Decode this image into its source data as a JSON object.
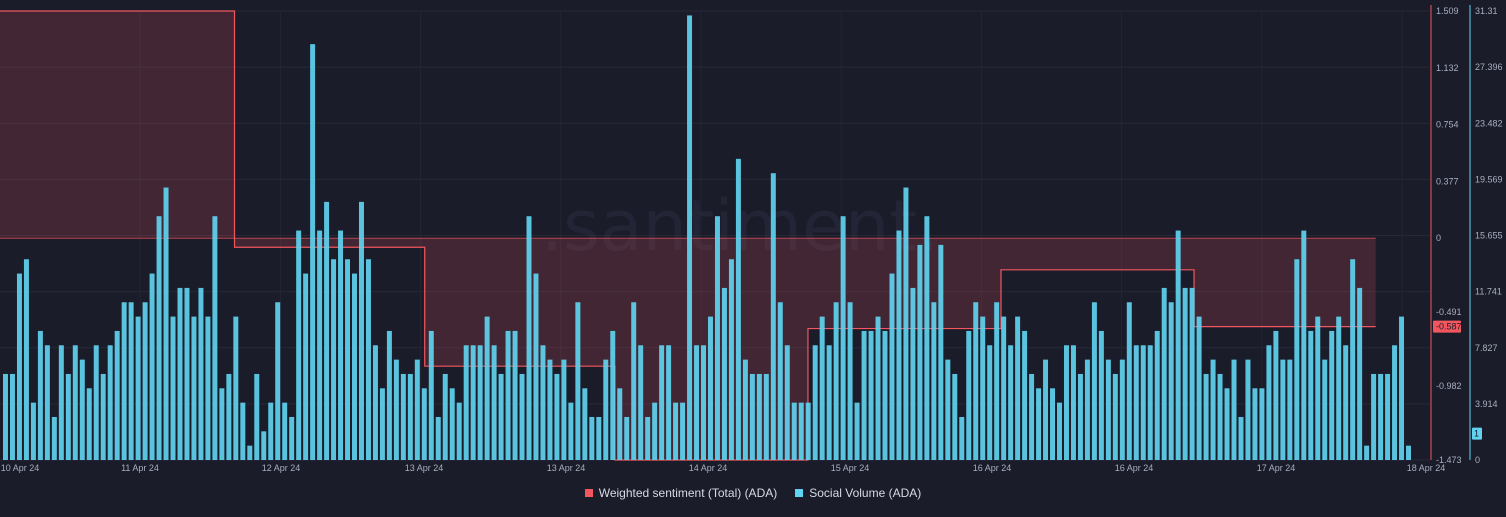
{
  "chart_data": {
    "type": "bar",
    "watermark": ".santiment.",
    "x_tick_labels": [
      "10 Apr 24",
      "11 Apr 24",
      "12 Apr 24",
      "13 Apr 24",
      "13 Apr 24",
      "14 Apr 24",
      "15 Apr 24",
      "16 Apr 24",
      "16 Apr 24",
      "17 Apr 24",
      "18 Apr 24"
    ],
    "left_axis": {
      "label": "Weighted sentiment (Total) (ADA)",
      "ylim": [
        -1.473,
        1.509
      ],
      "ticks": [
        "1.509",
        "1.132",
        "0.754",
        "0.377",
        "0",
        "-0.491",
        "-0.982",
        "-1.473"
      ],
      "current_value_label": "-0.587",
      "color": "#f2565f"
    },
    "right_axis": {
      "label": "Social Volume (ADA)",
      "ylim": [
        0,
        31.31
      ],
      "ticks": [
        "31.31",
        "27.396",
        "23.482",
        "19.569",
        "15.655",
        "11.741",
        "7.827",
        "3.914",
        "0"
      ],
      "current_value_label": "1",
      "color": "#5fd3ef"
    },
    "series": [
      {
        "name": "Social Volume (ADA)",
        "chart_type": "bar",
        "color": "#5fd3ef",
        "values": [
          6,
          6,
          13,
          14,
          4,
          9,
          8,
          3,
          8,
          6,
          8,
          7,
          5,
          8,
          6,
          8,
          9,
          11,
          11,
          10,
          11,
          13,
          17,
          19,
          10,
          12,
          12,
          10,
          12,
          10,
          17,
          5,
          6,
          10,
          4,
          1,
          6,
          2,
          4,
          11,
          4,
          3,
          16,
          13,
          29,
          16,
          18,
          14,
          16,
          14,
          13,
          18,
          14,
          8,
          5,
          9,
          7,
          6,
          6,
          7,
          5,
          9,
          3,
          6,
          5,
          4,
          8,
          8,
          8,
          10,
          8,
          6,
          9,
          9,
          6,
          17,
          13,
          8,
          7,
          6,
          7,
          4,
          11,
          5,
          3,
          3,
          7,
          9,
          5,
          3,
          11,
          8,
          3,
          4,
          8,
          8,
          4,
          4,
          31,
          8,
          8,
          10,
          17,
          12,
          14,
          21,
          7,
          6,
          6,
          6,
          20,
          11,
          8,
          4,
          4,
          4,
          8,
          10,
          8,
          11,
          17,
          11,
          4,
          9,
          9,
          10,
          9,
          13,
          16,
          19,
          12,
          15,
          17,
          11,
          15,
          7,
          6,
          3,
          9,
          11,
          10,
          8,
          11,
          10,
          8,
          10,
          9,
          6,
          5,
          7,
          5,
          4,
          8,
          8,
          6,
          7,
          11,
          9,
          7,
          6,
          7,
          11,
          8,
          8,
          8,
          9,
          12,
          11,
          16,
          12,
          12,
          10,
          6,
          7,
          6,
          5,
          7,
          3,
          7,
          5,
          5,
          8,
          9,
          7,
          7,
          14,
          16,
          9,
          10,
          7,
          9,
          10,
          8,
          14,
          12,
          1,
          6,
          6,
          6,
          8,
          10,
          1
        ]
      },
      {
        "name": "Weighted sentiment (Total) (ADA)",
        "chart_type": "step-area",
        "color": "#f2565f",
        "values": [
          1.509,
          1.509,
          -0.1,
          -0.1,
          -0.1,
          -0.87,
          -0.87,
          -0.87,
          -0.87,
          -0.87,
          -1.473,
          -1.473,
          -1.473,
          -1.473,
          -1.473,
          -1.473,
          -0.587,
          -0.587,
          -0.587,
          -0.587,
          -0.587,
          -0.21,
          -0.21,
          -0.21,
          -0.21,
          -0.21,
          -0.587,
          -0.587,
          -0.587,
          -0.587,
          -0.587,
          -0.587
        ],
        "step_x_fractions": [
          0.0,
          0.165,
          0.171,
          0.29,
          0.297,
          0.304,
          0.43,
          0.436,
          0.44,
          0.56,
          0.566,
          0.57,
          0.571,
          0.574,
          0.57,
          0.57,
          0.571,
          0.572,
          0.572,
          0.573,
          0.704,
          0.709,
          0.71,
          0.84,
          0.842,
          0.844,
          0.845,
          0.845,
          0.846,
          0.9,
          0.95,
          0.967
        ]
      }
    ]
  },
  "legend": {
    "items": [
      {
        "label": "Weighted sentiment (Total) (ADA)",
        "color": "#f2565f"
      },
      {
        "label": "Social Volume (ADA)",
        "color": "#5fd3ef"
      }
    ]
  }
}
